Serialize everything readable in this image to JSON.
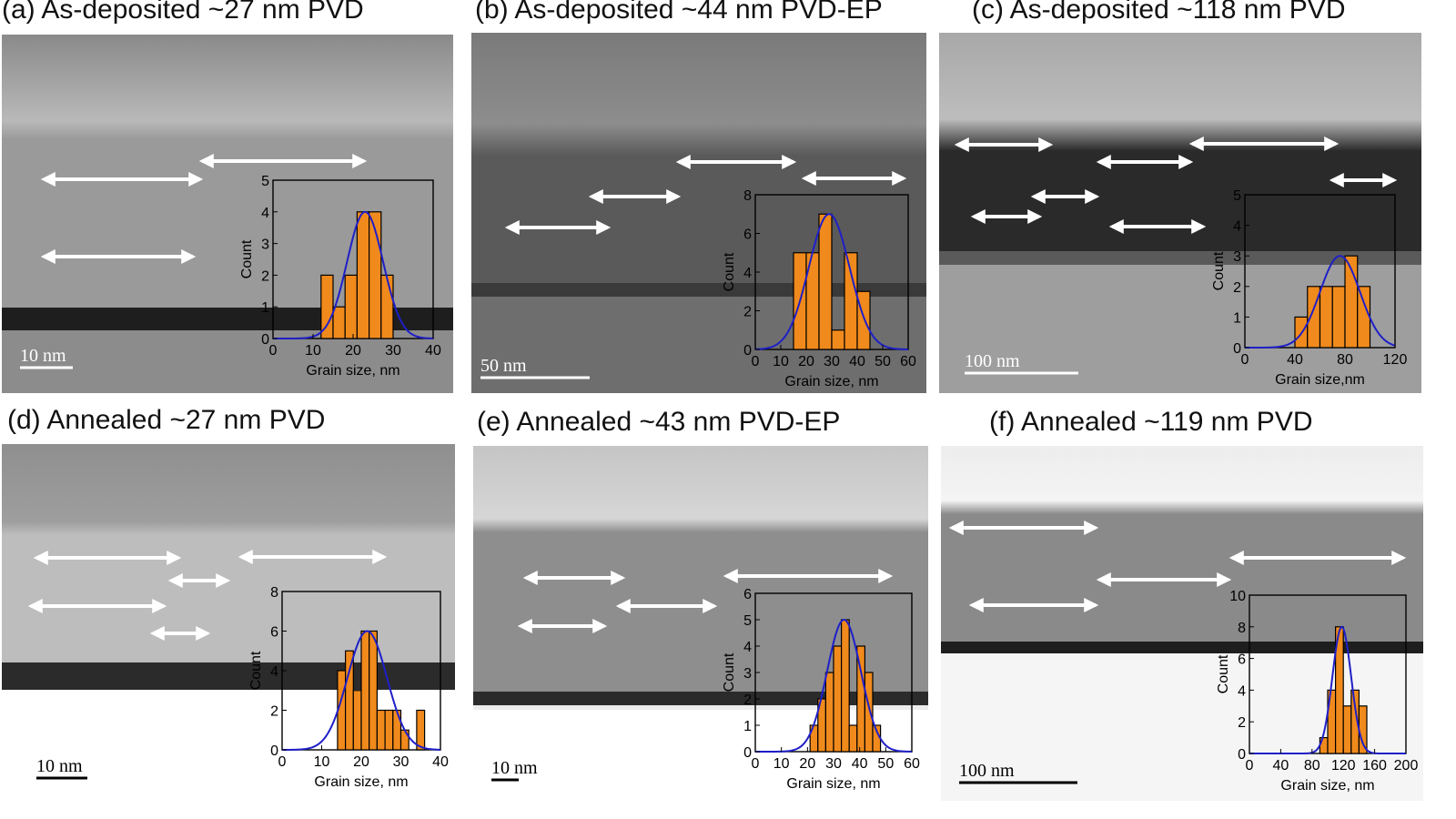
{
  "figure": {
    "panels": [
      {
        "id": "a",
        "title": "(a) As-deposited ~27 nm PVD",
        "scale_bar": "10 nm",
        "colors": {
          "cap": "#8a8a8a",
          "cap2": "#b9b9b9",
          "film": "#9a9a9a",
          "interface": "#1e1e1e",
          "substrate": "#8c8c8c"
        },
        "chart_data": {
          "type": "bar",
          "xlabel": "Grain size, nm",
          "ylabel": "Count",
          "xlim": [
            0,
            40
          ],
          "ylim": [
            0,
            5
          ],
          "xticks": [
            0,
            10,
            20,
            30,
            40
          ],
          "yticks": [
            0,
            1,
            2,
            3,
            4,
            5
          ],
          "bin_width": 3,
          "bins": [
            {
              "x": 13.5,
              "count": 2
            },
            {
              "x": 16.5,
              "count": 1
            },
            {
              "x": 19.5,
              "count": 2
            },
            {
              "x": 22.5,
              "count": 4
            },
            {
              "x": 25.5,
              "count": 4
            },
            {
              "x": 28.5,
              "count": 2
            }
          ],
          "fit": {
            "type": "gaussian",
            "mean": 23,
            "sigma": 4.5,
            "peak": 4
          }
        }
      },
      {
        "id": "b",
        "title": "(b) As-deposited ~44 nm PVD-EP",
        "scale_bar": "50  nm",
        "colors": {
          "cap": "#7a7a7a",
          "cap2": "#8d8d8d",
          "film": "#5a5a5a",
          "interface": "#3a3a3a",
          "substrate": "#6e6e6e"
        },
        "chart_data": {
          "type": "bar",
          "xlabel": "Grain size, nm",
          "ylabel": "Count",
          "xlim": [
            0,
            60
          ],
          "ylim": [
            0,
            8
          ],
          "xticks": [
            0,
            10,
            20,
            30,
            40,
            50,
            60
          ],
          "yticks": [
            0,
            2,
            4,
            6,
            8
          ],
          "bin_width": 5,
          "bins": [
            {
              "x": 17.5,
              "count": 5
            },
            {
              "x": 22.5,
              "count": 5
            },
            {
              "x": 27.5,
              "count": 7
            },
            {
              "x": 32.5,
              "count": 1
            },
            {
              "x": 37.5,
              "count": 5
            },
            {
              "x": 42.5,
              "count": 3
            }
          ],
          "fit": {
            "type": "gaussian",
            "mean": 29,
            "sigma": 8,
            "peak": 7
          }
        }
      },
      {
        "id": "c",
        "title": "(c) As-deposited ~118 nm PVD",
        "scale_bar": "100   nm",
        "colors": {
          "cap": "#a8a8a8",
          "cap2": "#bdbdbd",
          "film": "#2a2a2a",
          "interface": "#5a5a5a",
          "substrate": "#9e9e9e"
        },
        "chart_data": {
          "type": "bar",
          "xlabel": "Grain size,nm",
          "ylabel": "Count",
          "xlim": [
            0,
            120
          ],
          "ylim": [
            0,
            5
          ],
          "xticks": [
            0,
            40,
            80,
            120
          ],
          "yticks": [
            0,
            1,
            2,
            3,
            4,
            5
          ],
          "bin_width": 10,
          "bins": [
            {
              "x": 45,
              "count": 1
            },
            {
              "x": 55,
              "count": 2
            },
            {
              "x": 65,
              "count": 2
            },
            {
              "x": 75,
              "count": 2
            },
            {
              "x": 85,
              "count": 3
            },
            {
              "x": 95,
              "count": 2
            }
          ],
          "fit": {
            "type": "gaussian",
            "mean": 76,
            "sigma": 16,
            "peak": 3
          }
        }
      },
      {
        "id": "d",
        "title": "(d) Annealed ~27 nm PVD",
        "scale_bar": "10 nm",
        "colors": {
          "cap": "#8f8f8f",
          "cap2": "#9e9e9e",
          "film": "#bdbdbd",
          "interface": "#2b2b2b",
          "substrate": "#ffffff"
        },
        "chart_data": {
          "type": "bar",
          "xlabel": "Grain size, nm",
          "ylabel": "Count",
          "xlim": [
            0,
            40
          ],
          "ylim": [
            0,
            8
          ],
          "xticks": [
            0,
            10,
            20,
            30,
            40
          ],
          "yticks": [
            0,
            2,
            4,
            6,
            8
          ],
          "bin_width": 2,
          "bins": [
            {
              "x": 15,
              "count": 4
            },
            {
              "x": 17,
              "count": 5
            },
            {
              "x": 19,
              "count": 3
            },
            {
              "x": 21,
              "count": 6
            },
            {
              "x": 23,
              "count": 6
            },
            {
              "x": 25,
              "count": 2
            },
            {
              "x": 27,
              "count": 2
            },
            {
              "x": 29,
              "count": 2
            },
            {
              "x": 31,
              "count": 1
            },
            {
              "x": 35,
              "count": 2
            }
          ],
          "fit": {
            "type": "gaussian",
            "mean": 21.5,
            "sigma": 5,
            "peak": 6
          }
        }
      },
      {
        "id": "e",
        "title": "(e) Annealed ~43 nm PVD-EP",
        "scale_bar": "10 nm",
        "colors": {
          "cap": "#c5c5c5",
          "cap2": "#d6d6d6",
          "film": "#8e8e8e",
          "interface": "#2b2b2b",
          "substrate": "#ececec"
        },
        "chart_data": {
          "type": "bar",
          "xlabel": "Grain size, nm",
          "ylabel": "Count",
          "xlim": [
            0,
            60
          ],
          "ylim": [
            0,
            6
          ],
          "xticks": [
            0,
            10,
            20,
            30,
            40,
            50,
            60
          ],
          "yticks": [
            0,
            1,
            2,
            3,
            4,
            5,
            6
          ],
          "bin_width": 3,
          "bins": [
            {
              "x": 22.5,
              "count": 1
            },
            {
              "x": 25.5,
              "count": 2
            },
            {
              "x": 28.5,
              "count": 3
            },
            {
              "x": 31.5,
              "count": 4
            },
            {
              "x": 34.5,
              "count": 5
            },
            {
              "x": 37.5,
              "count": 1
            },
            {
              "x": 40.5,
              "count": 4
            },
            {
              "x": 43.5,
              "count": 3
            },
            {
              "x": 46.5,
              "count": 1
            }
          ],
          "fit": {
            "type": "gaussian",
            "mean": 34,
            "sigma": 6.5,
            "peak": 5
          }
        }
      },
      {
        "id": "f",
        "title": "(f) Annealed ~119 nm PVD",
        "scale_bar": "100  nm",
        "colors": {
          "cap": "#ededed",
          "cap2": "#f4f4f4",
          "film": "#8a8a8a",
          "interface": "#1e1e1e",
          "substrate": "#f5f5f5"
        },
        "chart_data": {
          "type": "bar",
          "xlabel": "Grain size, nm",
          "ylabel": "Count",
          "xlim": [
            0,
            200
          ],
          "ylim": [
            0,
            10
          ],
          "xticks": [
            0,
            40,
            80,
            120,
            160,
            200
          ],
          "yticks": [
            0,
            2,
            4,
            6,
            8,
            10
          ],
          "bin_width": 10,
          "bins": [
            {
              "x": 95,
              "count": 1
            },
            {
              "x": 105,
              "count": 4
            },
            {
              "x": 115,
              "count": 8
            },
            {
              "x": 125,
              "count": 3
            },
            {
              "x": 135,
              "count": 4
            },
            {
              "x": 145,
              "count": 3
            }
          ],
          "fit": {
            "type": "gaussian",
            "mean": 118,
            "sigma": 12,
            "peak": 8
          }
        }
      }
    ]
  },
  "colors": {
    "bar_fill": "#f08a1c",
    "bar_stroke": "#000000",
    "fit_line": "#1f1fc8",
    "arrow": "#ffffff"
  }
}
